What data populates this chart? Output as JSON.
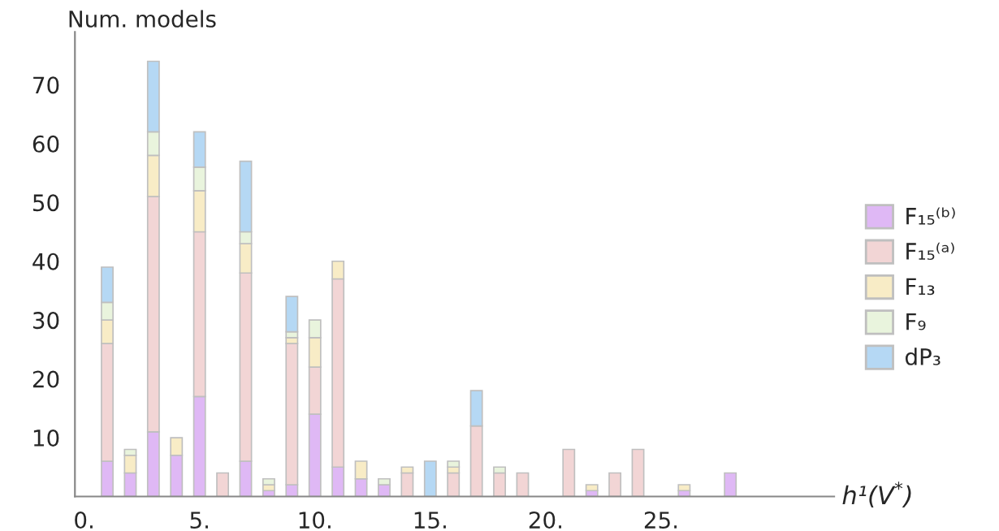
{
  "chart_data": {
    "type": "bar",
    "stacked": true,
    "ylabel": "Num. models",
    "xlabel": "h¹(V$^{*}$)",
    "x": [
      1,
      2,
      3,
      4,
      5,
      6,
      7,
      8,
      9,
      10,
      11,
      12,
      13,
      14,
      15,
      16,
      17,
      18,
      19,
      20,
      21,
      22,
      23,
      24,
      25,
      26,
      27,
      28
    ],
    "series": [
      {
        "name": "F₁₅⁽ᵇ⁾",
        "color": "#dfb8f5",
        "values": [
          6,
          4,
          11,
          7,
          17,
          null,
          6,
          1,
          2,
          14,
          5,
          3,
          2,
          null,
          null,
          null,
          null,
          null,
          null,
          null,
          null,
          1,
          null,
          null,
          null,
          1,
          null,
          4
        ]
      },
      {
        "name": "F₁₅⁽ᵃ⁾",
        "color": "#f2d5d5",
        "values": [
          20,
          null,
          40,
          null,
          28,
          4,
          32,
          null,
          24,
          8,
          32,
          null,
          null,
          4,
          null,
          4,
          12,
          4,
          4,
          null,
          8,
          null,
          4,
          8,
          null,
          null,
          null,
          null
        ]
      },
      {
        "name": "F₁₃",
        "color": "#f8ecc6",
        "values": [
          4,
          3,
          7,
          3,
          7,
          null,
          5,
          1,
          1,
          5,
          3,
          3,
          null,
          1,
          null,
          1,
          null,
          null,
          null,
          null,
          null,
          1,
          null,
          null,
          null,
          1,
          null,
          null
        ]
      },
      {
        "name": "F₉",
        "color": "#e9f4dd",
        "values": [
          3,
          1,
          4,
          null,
          4,
          null,
          2,
          1,
          1,
          3,
          null,
          null,
          1,
          null,
          null,
          1,
          null,
          1,
          null,
          null,
          null,
          null,
          null,
          null,
          null,
          null,
          null,
          null
        ]
      },
      {
        "name": "dP₃",
        "color": "#b5d8f4",
        "values": [
          6,
          null,
          12,
          null,
          6,
          null,
          12,
          null,
          6,
          null,
          null,
          null,
          null,
          null,
          6,
          null,
          6,
          null,
          null,
          null,
          null,
          null,
          null,
          null,
          null,
          null,
          null,
          null
        ]
      }
    ],
    "xlim": [
      -0.4,
      32.5
    ],
    "ylim": [
      0,
      79
    ],
    "xticks": [
      {
        "value": 0,
        "label": "0."
      },
      {
        "value": 5,
        "label": "5."
      },
      {
        "value": 10,
        "label": "10."
      },
      {
        "value": 15,
        "label": "15."
      },
      {
        "value": 20,
        "label": "20."
      },
      {
        "value": 25,
        "label": "25."
      }
    ],
    "yticks": [
      10,
      20,
      30,
      40,
      50,
      60,
      70
    ],
    "legend": "right",
    "grid": false
  }
}
